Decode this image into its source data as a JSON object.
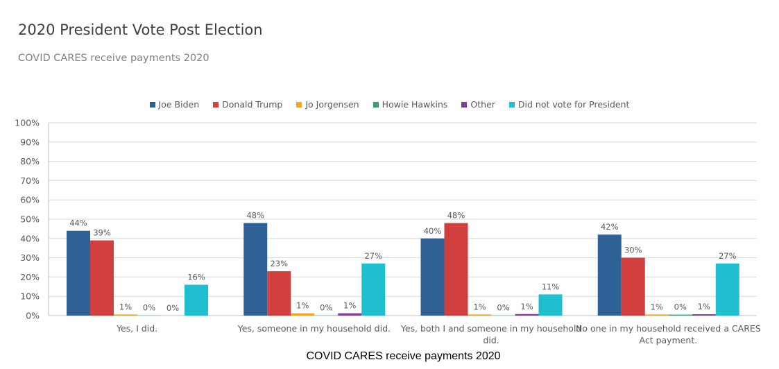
{
  "chart_data": {
    "type": "bar",
    "title": "2020 President Vote Post Election",
    "subtitle": "COVID CARES receive payments 2020",
    "xlabel": "COVID CARES receive payments 2020",
    "ylabel": "",
    "ylim": [
      0,
      100
    ],
    "yticks": [
      "0%",
      "10%",
      "20%",
      "30%",
      "40%",
      "50%",
      "60%",
      "70%",
      "80%",
      "90%",
      "100%"
    ],
    "grid": true,
    "legend_position": "top",
    "categories": [
      "Yes, I did.",
      "Yes, someone in my household did.",
      "Yes, both I and someone in my household did.",
      "No one in my household received a CARES Act payment."
    ],
    "category_lines": [
      [
        "Yes, I did."
      ],
      [
        "Yes, someone in my household did."
      ],
      [
        "Yes, both I and someone in my household",
        "did."
      ],
      [
        "No one in my household received a CARES",
        "Act payment."
      ]
    ],
    "series": [
      {
        "name": "Joe Biden",
        "color": "#2e6195",
        "values": [
          44,
          48,
          40,
          42
        ],
        "labels": [
          "44%",
          "48%",
          "40%",
          "42%"
        ]
      },
      {
        "name": "Donald Trump",
        "color": "#d13f3f",
        "values": [
          39,
          23,
          48,
          30
        ],
        "labels": [
          "39%",
          "23%",
          "48%",
          "30%"
        ]
      },
      {
        "name": "Jo Jorgensen",
        "color": "#f2a52a",
        "values": [
          0.6,
          1.2,
          0.6,
          0.6
        ],
        "labels": [
          "1%",
          "1%",
          "1%",
          "1%"
        ]
      },
      {
        "name": "Howie Hawkins",
        "color": "#3c9e6c",
        "values": [
          0.1,
          0.1,
          0.1,
          0.5
        ],
        "labels": [
          "0%",
          "0%",
          "0%",
          "0%"
        ]
      },
      {
        "name": "Other",
        "color": "#7b3f98",
        "values": [
          0,
          1.2,
          0.8,
          0.7
        ],
        "labels": [
          "0%",
          "1%",
          "1%",
          "1%"
        ]
      },
      {
        "name": "Did not vote for President",
        "color": "#1fbfcf",
        "values": [
          16,
          27,
          11,
          27
        ],
        "labels": [
          "16%",
          "27%",
          "11%",
          "27%"
        ]
      }
    ]
  }
}
